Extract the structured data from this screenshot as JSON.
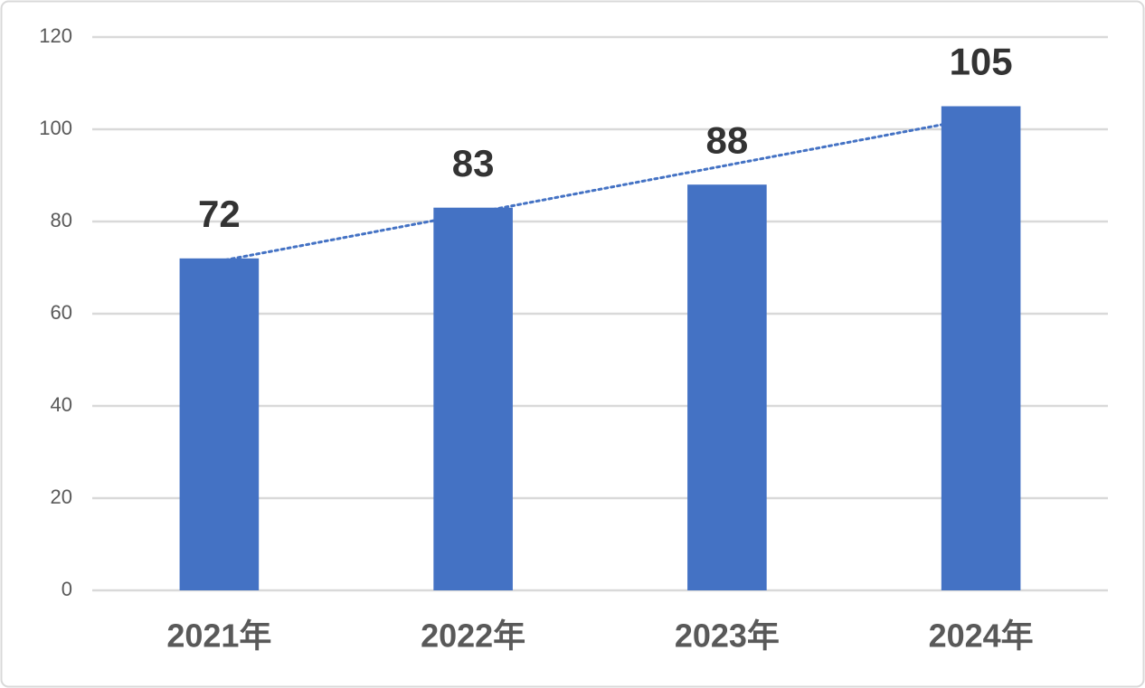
{
  "chart_data": {
    "type": "bar",
    "categories": [
      "2021年",
      "2022年",
      "2023年",
      "2024年"
    ],
    "values": [
      72,
      83,
      88,
      105
    ],
    "color": "#4472c4",
    "ylim": [
      0,
      120
    ],
    "yticks": [
      0,
      20,
      40,
      60,
      80,
      100,
      120
    ],
    "grid": true,
    "trendline": "linear",
    "trendline_color": "#4472c4"
  }
}
